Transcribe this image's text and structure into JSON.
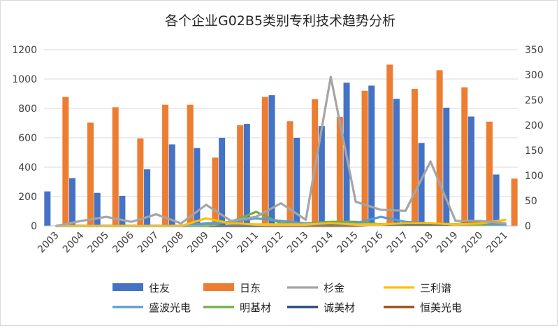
{
  "chart_data": {
    "type": "bar",
    "title": "各个企业G02B5类别专利技术趋势分析",
    "categories": [
      "2003",
      "2004",
      "2005",
      "2006",
      "2007",
      "2008",
      "2009",
      "2010",
      "2011",
      "2012",
      "2013",
      "2014",
      "2015",
      "2016",
      "2017",
      "2018",
      "2019",
      "2020",
      "2021"
    ],
    "y_left": {
      "min": 0,
      "max": 1200,
      "ticks": [
        0,
        200,
        400,
        600,
        800,
        1000,
        1200
      ]
    },
    "y_right": {
      "min": 0,
      "max": 350,
      "ticks": [
        0,
        50,
        100,
        150,
        200,
        250,
        300,
        350
      ]
    },
    "grid": true,
    "legend_position": "bottom",
    "series": [
      {
        "name": "住友",
        "kind": "bar",
        "axis": "left",
        "color": "#4472c4",
        "values": [
          235,
          325,
          225,
          205,
          385,
          555,
          530,
          600,
          695,
          890,
          600,
          680,
          975,
          955,
          865,
          565,
          805,
          745,
          350
        ]
      },
      {
        "name": "日东",
        "kind": "bar",
        "axis": "left",
        "color": "#ed7d31",
        "values": [
          878,
          703,
          808,
          595,
          825,
          825,
          465,
          685,
          878,
          713,
          863,
          743,
          920,
          1098,
          933,
          1060,
          943,
          710,
          322
        ]
      },
      {
        "name": "杉金",
        "kind": "line",
        "axis": "right",
        "color": "#a5a5a5",
        "values": [
          0,
          10,
          18,
          8,
          23,
          5,
          42,
          10,
          18,
          45,
          12,
          296,
          48,
          32,
          30,
          128,
          10,
          10,
          5
        ]
      },
      {
        "name": "三利谱",
        "kind": "line",
        "axis": "right",
        "color": "#ffc000",
        "values": [
          0,
          0,
          0,
          0,
          0,
          0,
          15,
          5,
          3,
          3,
          3,
          5,
          3,
          3,
          5,
          5,
          3,
          5,
          12
        ]
      },
      {
        "name": "盛波光电",
        "kind": "line",
        "axis": "right",
        "color": "#5b9bd5",
        "values": [
          0,
          0,
          0,
          0,
          0,
          0,
          5,
          8,
          15,
          10,
          5,
          5,
          5,
          18,
          8,
          5,
          3,
          5,
          3
        ]
      },
      {
        "name": "明基材",
        "kind": "line",
        "axis": "right",
        "color": "#70ad47",
        "values": [
          0,
          0,
          0,
          0,
          0,
          0,
          0,
          8,
          28,
          5,
          5,
          8,
          8,
          3,
          5,
          5,
          3,
          3,
          3
        ]
      },
      {
        "name": "诚美材",
        "kind": "line",
        "axis": "right",
        "color": "#264478",
        "values": [
          0,
          0,
          0,
          0,
          0,
          0,
          0,
          0,
          0,
          3,
          3,
          3,
          3,
          3,
          3,
          3,
          3,
          3,
          3
        ]
      },
      {
        "name": "恒美光电",
        "kind": "line",
        "axis": "right",
        "color": "#9e480e",
        "values": [
          0,
          0,
          0,
          0,
          0,
          0,
          0,
          0,
          0,
          0,
          0,
          0,
          0,
          3,
          3,
          5,
          3,
          8,
          3
        ]
      }
    ]
  }
}
